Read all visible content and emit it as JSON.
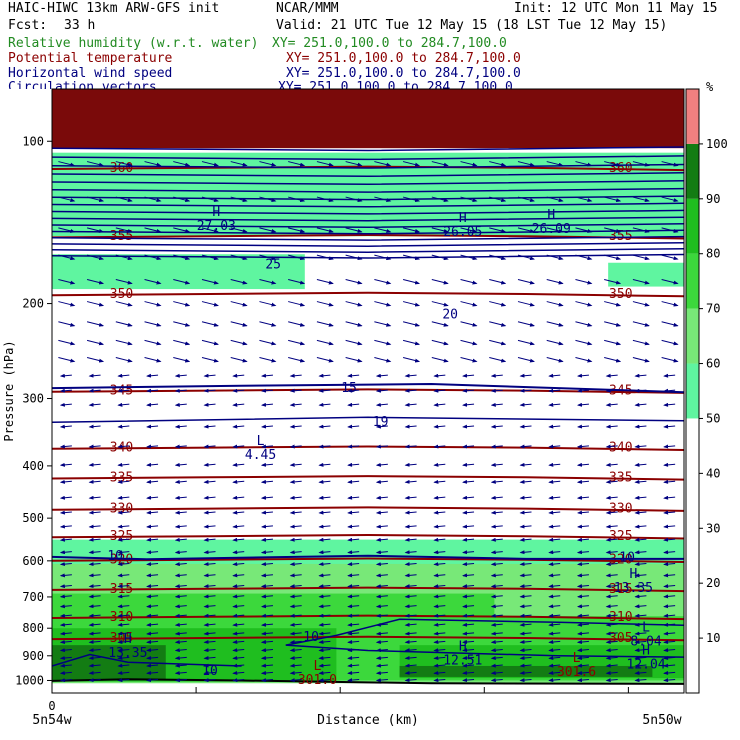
{
  "header": {
    "model": "HAIC-HIWC 13km ARW-GFS init",
    "org": "NCAR/MMM",
    "init": "Init: 12 UTC Mon 11 May 15",
    "fcst_label": "Fcst:",
    "fcst_value": "33 h",
    "valid": "Valid: 21 UTC Tue 12 May 15 (18 LST Tue 12 May 15)"
  },
  "legend": [
    {
      "name": "Relative humidity (w.r.t. water)",
      "xy": "XY= 251.0,100.0 to 284.7,100.0",
      "color": "#228b22"
    },
    {
      "name": "Potential temperature",
      "xy": "XY= 251.0,100.0 to 284.7,100.0",
      "color": "#8b0000"
    },
    {
      "name": "Horizontal wind speed",
      "xy": "XY= 251.0,100.0 to 284.7,100.0",
      "color": "#000080"
    },
    {
      "name": "Circulation vectors",
      "xy": "XY= 251.0,100.0 to 284.7,100.0",
      "color": "#000080"
    }
  ],
  "chart_data": {
    "type": "heatmap",
    "title": "",
    "xlabel": "Distance (km)",
    "ylabel": "Pressure (hPa)",
    "x_tick_labels": [
      "0"
    ],
    "x_endpoint_labels": [
      "5n54w",
      "5n50w"
    ],
    "y_ticks": [
      100,
      200,
      300,
      400,
      500,
      600,
      700,
      800,
      900,
      1000
    ],
    "y_scale": "log",
    "ylim": [
      1055,
      80
    ],
    "colorbar": {
      "unit": "%",
      "ticks": [
        10,
        20,
        30,
        40,
        50,
        60,
        70,
        80,
        90,
        100
      ],
      "levels": [
        {
          "from": 0,
          "to": 50,
          "color": "#ffffff"
        },
        {
          "from": 50,
          "to": 60,
          "color": "#5ff5a0"
        },
        {
          "from": 60,
          "to": 70,
          "color": "#78e878"
        },
        {
          "from": 70,
          "to": 80,
          "color": "#3cd83c"
        },
        {
          "from": 80,
          "to": 90,
          "color": "#1fbe1f"
        },
        {
          "from": 90,
          "to": 100,
          "color": "#137c13"
        },
        {
          "from": 100,
          "to": 110,
          "color": "#f08080"
        }
      ]
    },
    "theta_contours": [
      {
        "label": "305",
        "p": 834
      },
      {
        "label": "310",
        "p": 762
      },
      {
        "label": "315",
        "p": 676
      },
      {
        "label": "320",
        "p": 597
      },
      {
        "label": "325",
        "p": 540
      },
      {
        "label": "330",
        "p": 480
      },
      {
        "label": "335",
        "p": 420
      },
      {
        "label": "340",
        "p": 370
      },
      {
        "label": "345",
        "p": 290
      },
      {
        "label": "350",
        "p": 192
      },
      {
        "label": "355",
        "p": 150
      },
      {
        "label": "360",
        "p": 112
      }
    ],
    "wind_labels": [
      "10",
      "15",
      "19",
      "20",
      "25",
      "10",
      "10",
      "10"
    ],
    "extrema": [
      {
        "kind": "H",
        "value": "13.35"
      },
      {
        "kind": "H",
        "value": "12.51"
      },
      {
        "kind": "H",
        "value": "12.04"
      },
      {
        "kind": "H",
        "value": "13.35"
      },
      {
        "kind": "L",
        "value": "8.04"
      },
      {
        "kind": "L",
        "value": "4.45"
      },
      {
        "kind": "H",
        "value": "26.05"
      },
      {
        "kind": "H",
        "value": "26.09"
      },
      {
        "kind": "H",
        "value": "27.03"
      },
      {
        "kind": "L",
        "value": "301.0"
      },
      {
        "kind": "L",
        "value": "301.6"
      }
    ]
  }
}
